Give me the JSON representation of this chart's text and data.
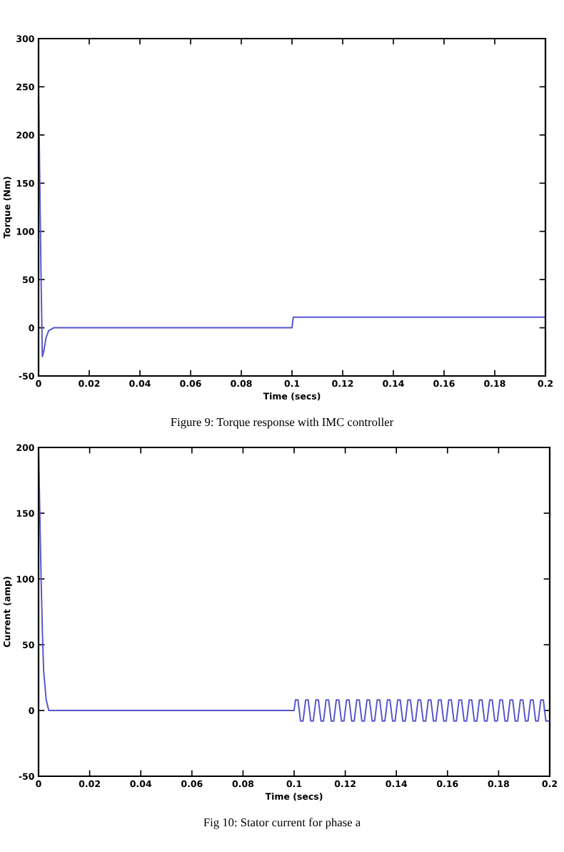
{
  "chart_data": [
    {
      "type": "line",
      "xlabel": "Time (secs)",
      "ylabel": "Torque (Nm)",
      "annotations": [
        "Figure 9: Torque response with IMC controller"
      ],
      "series": [
        {
          "color": "#5555cc",
          "x": [
            0,
            0.0005,
            0.001,
            0.0015,
            0.002,
            0.003,
            0.004,
            0.006,
            0.1,
            0.1005,
            0.2
          ],
          "values": [
            250,
            150,
            50,
            -30,
            -25,
            -10,
            -3,
            0,
            0,
            11,
            11
          ]
        }
      ],
      "xlim": [
        0,
        0.2
      ],
      "xticks": [
        0,
        0.02,
        0.04,
        0.06,
        0.08,
        0.1,
        0.12,
        0.14,
        0.16,
        0.18,
        0.2
      ],
      "ylim": [
        -50,
        300
      ],
      "yticks": [
        -50,
        0,
        50,
        100,
        150,
        200,
        250,
        300
      ],
      "grid": false,
      "legend": false
    },
    {
      "type": "line",
      "xlabel": "Time (secs)",
      "ylabel": "Current (amp)",
      "annotations": [
        "Fig 10: Stator current for phase a"
      ],
      "series": [
        {
          "color": "#5555cc",
          "x": [
            0,
            0.0005,
            0.001,
            0.0015,
            0.002,
            0.003,
            0.004,
            0.1,
            0.1005,
            0.1015,
            0.1025,
            0.1035,
            0.1045,
            0.1055,
            0.1065,
            0.1075,
            0.1085,
            0.1095,
            0.1105,
            0.1115,
            0.1125,
            0.1135,
            0.1145,
            0.1155,
            0.1165,
            0.1175,
            0.1185,
            0.1195,
            0.1205,
            0.1215,
            0.1225,
            0.1235,
            0.1245,
            0.1255,
            0.1265,
            0.1275,
            0.1285,
            0.1295,
            0.1305,
            0.1315,
            0.1325,
            0.1335,
            0.1345,
            0.1355,
            0.1365,
            0.1375,
            0.1385,
            0.1395,
            0.1405,
            0.1415,
            0.1425,
            0.1435,
            0.1445,
            0.1455,
            0.1465,
            0.1475,
            0.1485,
            0.1495,
            0.1505,
            0.1515,
            0.1525,
            0.1535,
            0.1545,
            0.1555,
            0.1565,
            0.1575,
            0.1585,
            0.1595,
            0.1605,
            0.1615,
            0.1625,
            0.1635,
            0.1645,
            0.1655,
            0.1665,
            0.1675,
            0.1685,
            0.1695,
            0.1705,
            0.1715,
            0.1725,
            0.1735,
            0.1745,
            0.1755,
            0.1765,
            0.1775,
            0.1785,
            0.1795,
            0.1805,
            0.1815,
            0.1825,
            0.1835,
            0.1845,
            0.1855,
            0.1865,
            0.1875,
            0.1885,
            0.1895,
            0.1905,
            0.1915,
            0.1925,
            0.1935,
            0.1945,
            0.1955,
            0.1965,
            0.1975,
            0.1985,
            0.1995
          ],
          "values": [
            200,
            150,
            100,
            60,
            30,
            8,
            0,
            0,
            8,
            8,
            -8,
            -8,
            8,
            8,
            -8,
            -8,
            8,
            8,
            -8,
            -8,
            8,
            8,
            -8,
            -8,
            8,
            8,
            -8,
            -8,
            8,
            8,
            -8,
            -8,
            8,
            8,
            -8,
            -8,
            8,
            8,
            -8,
            -8,
            8,
            8,
            -8,
            -8,
            8,
            8,
            -8,
            -8,
            8,
            8,
            -8,
            -8,
            8,
            8,
            -8,
            -8,
            8,
            8,
            -8,
            -8,
            8,
            8,
            -8,
            -8,
            8,
            8,
            -8,
            -8,
            8,
            8,
            -8,
            -8,
            8,
            8,
            -8,
            -8,
            8,
            8,
            -8,
            -8,
            8,
            8,
            -8,
            -8,
            8,
            8,
            -8,
            -8,
            8,
            8,
            -8,
            -8,
            8,
            8,
            -8,
            -8,
            8,
            8,
            -8,
            -8,
            8,
            8,
            -8,
            -8,
            8,
            8,
            -8,
            -8
          ]
        }
      ],
      "xlim": [
        0,
        0.2
      ],
      "xticks": [
        0,
        0.02,
        0.04,
        0.06,
        0.08,
        0.1,
        0.12,
        0.14,
        0.16,
        0.18,
        0.2
      ],
      "ylim": [
        -50,
        200
      ],
      "yticks": [
        -50,
        0,
        50,
        100,
        150,
        200
      ],
      "grid": false,
      "legend": false
    }
  ]
}
